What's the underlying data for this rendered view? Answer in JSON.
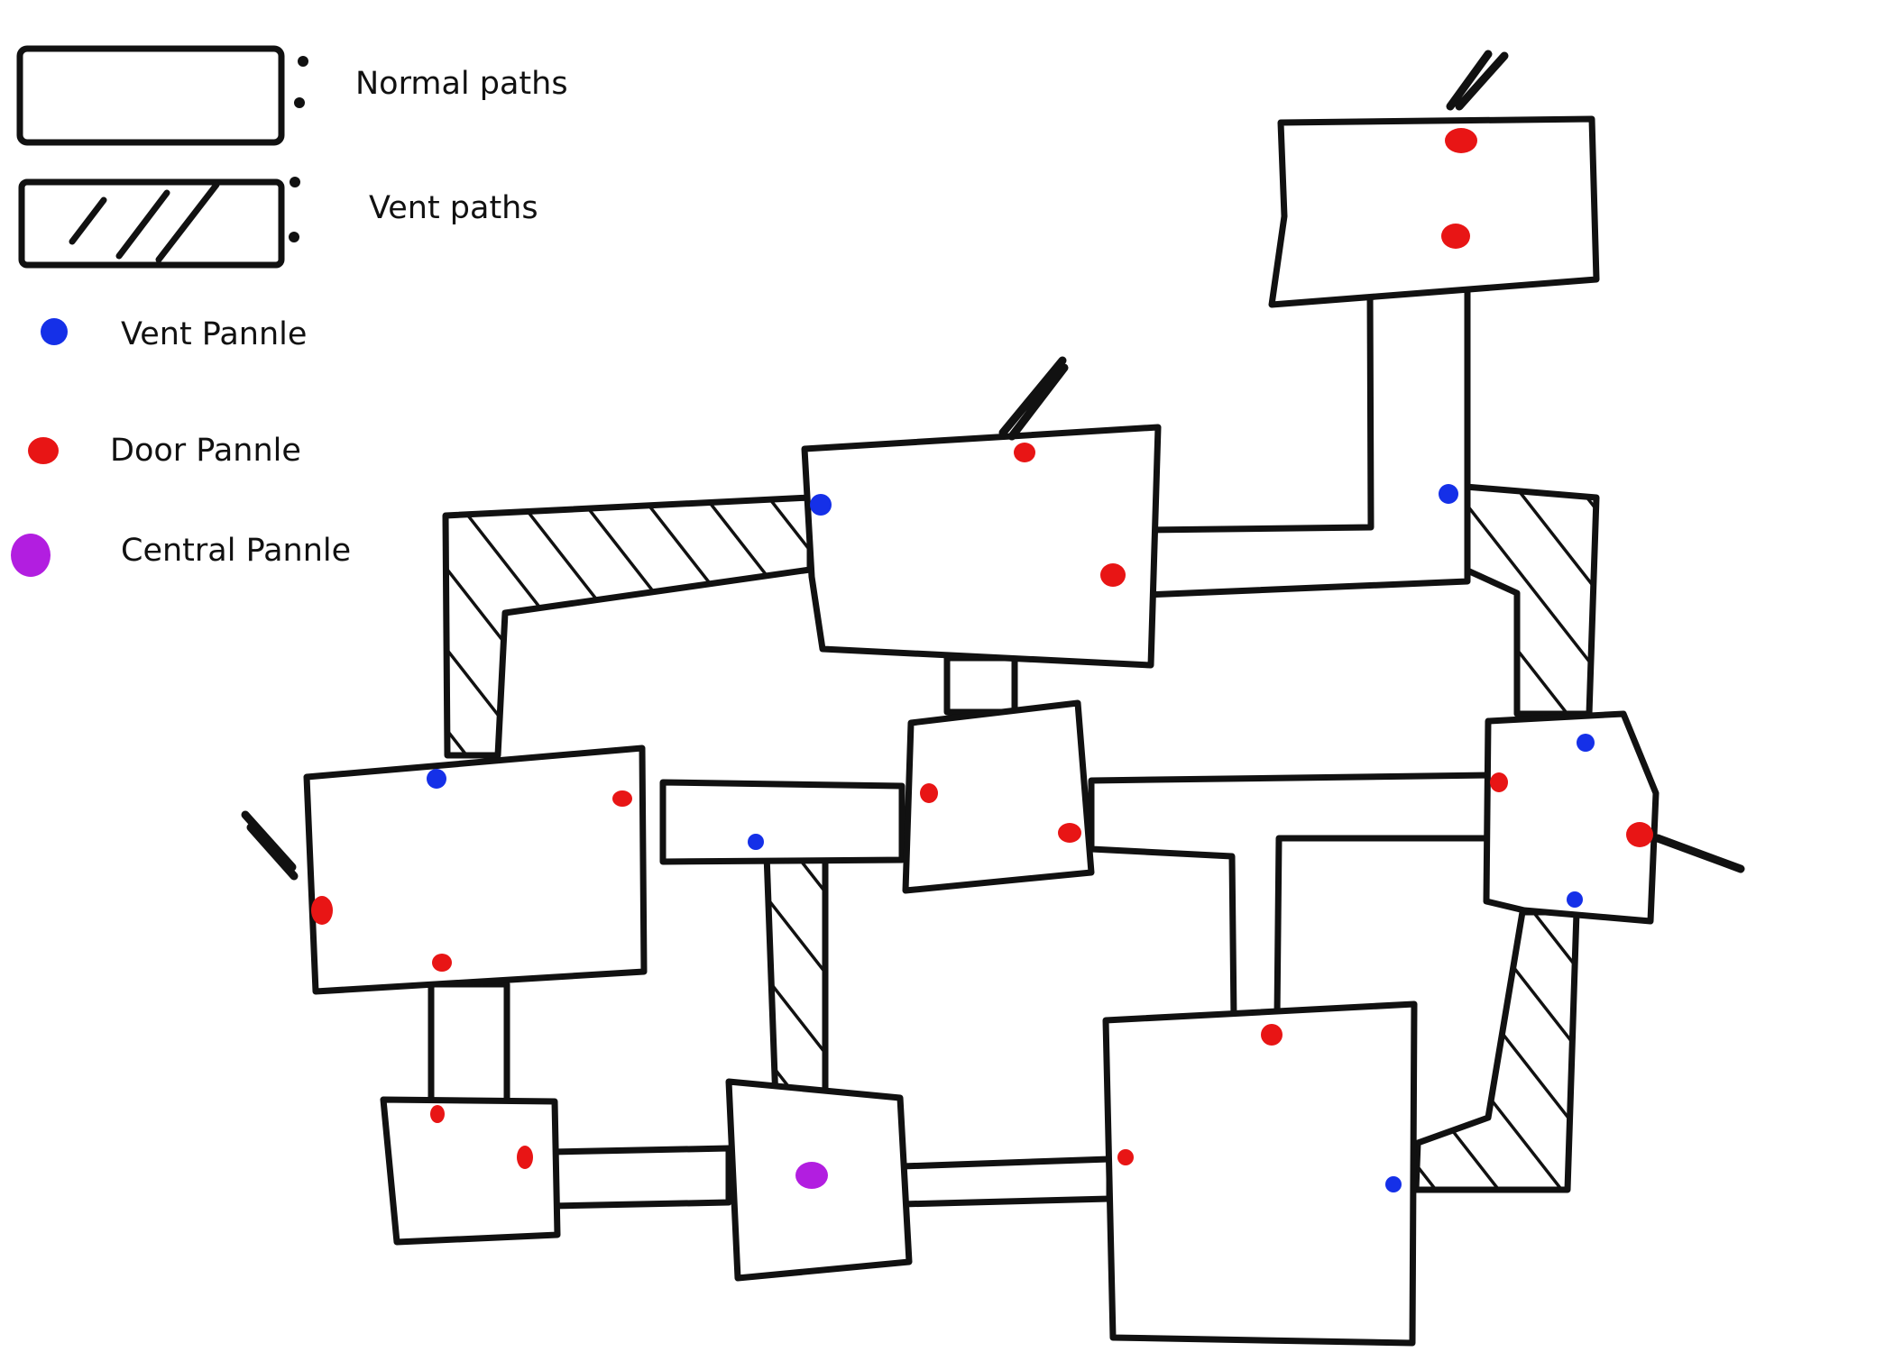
{
  "legend": {
    "normal_paths": "Normal paths",
    "vent_paths": "Vent paths",
    "vent_panel": "Vent Pannle",
    "door_panel": "Door Pannle",
    "central_panel": "Central Pannle"
  },
  "colors": {
    "ink": "#111111",
    "vent_panel": "#1530e8",
    "door_panel": "#e81515",
    "central_panel": "#b21ee0",
    "background": "#ffffff"
  }
}
